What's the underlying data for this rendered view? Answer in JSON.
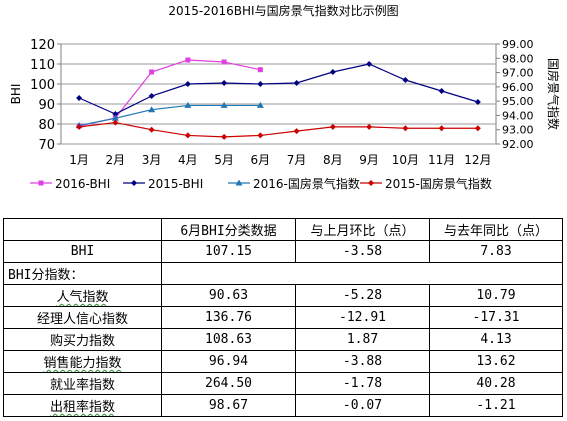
{
  "chart_data": {
    "type": "line",
    "title": "2015-2016BHI与国房景气指数对比示例图",
    "categories": [
      "1月",
      "2月",
      "3月",
      "4月",
      "5月",
      "6月",
      "7月",
      "8月",
      "9月",
      "10月",
      "11月",
      "12月"
    ],
    "ylabel_left": "BHI",
    "ylabel_right": "国房景气指数",
    "ylim_left": [
      70,
      120
    ],
    "yticks_left": [
      "70",
      "80",
      "90",
      "100",
      "110",
      "120"
    ],
    "ylim_right": [
      92,
      99
    ],
    "yticks_right": [
      "92.00",
      "93.00",
      "94.00",
      "95.00",
      "96.00",
      "97.00",
      "98.00",
      "99.00"
    ],
    "grid": true,
    "legend_position": "bottom",
    "series": [
      {
        "name": "2016-BHI",
        "axis": "left",
        "color": "#e040e0",
        "marker": "square",
        "values": [
          79,
          83,
          106,
          112,
          111,
          107.15,
          null,
          null,
          null,
          null,
          null,
          null
        ]
      },
      {
        "name": "2015-BHI",
        "axis": "left",
        "color": "#000080",
        "marker": "diamond",
        "values": [
          93,
          85,
          94,
          100,
          100.5,
          100,
          100.5,
          106,
          110,
          102,
          96.5,
          91
        ]
      },
      {
        "name": "2016-国房景气指数",
        "axis": "right",
        "color": "#1f77b4",
        "marker": "triangle",
        "values": [
          93.3,
          93.8,
          94.4,
          94.7,
          94.7,
          94.7,
          null,
          null,
          null,
          null,
          null,
          null
        ]
      },
      {
        "name": "2015-国房景气指数",
        "axis": "right",
        "color": "#cc0000",
        "marker": "diamond",
        "values": [
          93.2,
          93.5,
          93.0,
          92.6,
          92.5,
          92.6,
          92.9,
          93.2,
          93.2,
          93.1,
          93.1,
          93.1
        ]
      }
    ]
  },
  "table": {
    "headers": [
      "",
      "6月BHI分类数据",
      "与上月环比（点）",
      "与去年同比（点）"
    ],
    "rows": [
      {
        "name": "BHI",
        "v1": "107.15",
        "v2": "-3.58",
        "v3": "7.83"
      },
      {
        "name": "BHI分指数：",
        "section": true
      },
      {
        "name": "人气指数",
        "v1": "90.63",
        "v2": "-5.28",
        "v3": "10.79",
        "wavy": true
      },
      {
        "name": "经理人信心指数",
        "v1": "136.76",
        "v2": "-12.91",
        "v3": "-17.31"
      },
      {
        "name": "购买力指数",
        "v1": "108.63",
        "v2": "1.87",
        "v3": "4.13"
      },
      {
        "name": "销售能力指数",
        "v1": "96.94",
        "v2": "-3.88",
        "v3": "13.62",
        "wavy": true
      },
      {
        "name": "就业率指数",
        "v1": "264.50",
        "v2": "-1.78",
        "v3": "40.28"
      },
      {
        "name": "出租率指数",
        "v1": "98.67",
        "v2": "-0.07",
        "v3": "-1.21",
        "wavy": true
      }
    ]
  }
}
